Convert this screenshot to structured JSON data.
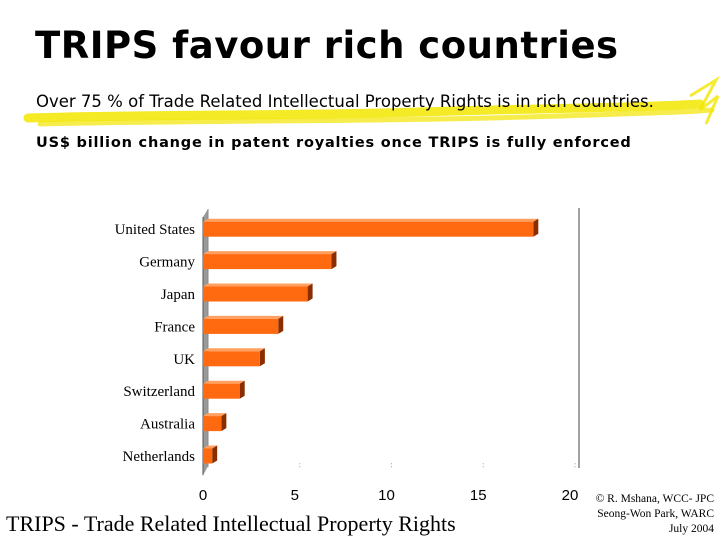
{
  "slide": {
    "title": "TRIPS favour rich countries",
    "subtitle": "Over 75 % of Trade Related Intellectual Property Rights is in rich countries.",
    "footer": "TRIPS - Trade Related Intellectual Property Rights",
    "credit": [
      "© R. Mshana, WCC- JPC",
      "Seong-Won Park, WARC",
      "July 2004"
    ]
  },
  "colors": {
    "bar": "#ff6a10",
    "bar_top": "#ffa060",
    "bar_side": "#8a2e00",
    "highlight": "#f2e600"
  },
  "chart_data": {
    "type": "bar",
    "orientation": "horizontal",
    "title": "US$ billion change in patent royalties once TRIPS is fully enforced",
    "categories": [
      "United States",
      "Germany",
      "Japan",
      "France",
      "UK",
      "Switzerland",
      "Australia",
      "Netherlands"
    ],
    "values": [
      18.0,
      7.0,
      5.7,
      4.1,
      3.1,
      2.0,
      1.0,
      0.5
    ],
    "xticks": [
      0,
      5,
      10,
      15,
      20
    ],
    "xlim": [
      0,
      20
    ],
    "grid": false,
    "legend": "none"
  }
}
